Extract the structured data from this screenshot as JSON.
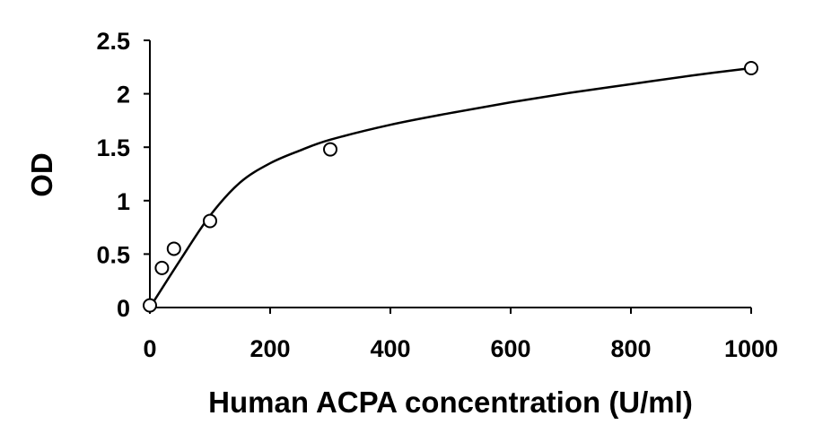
{
  "chart_data": {
    "type": "scatter",
    "title": "",
    "xlabel": "Human ACPA concentration (U/ml)",
    "ylabel": "OD",
    "xlim": [
      0,
      1000
    ],
    "ylim": [
      0,
      2.5
    ],
    "x_ticks": [
      0,
      200,
      400,
      600,
      800,
      1000
    ],
    "y_ticks": [
      0,
      0.5,
      1,
      1.5,
      2,
      2.5
    ],
    "x_tick_labels": [
      "0",
      "200",
      "400",
      "600",
      "800",
      "1000"
    ],
    "y_tick_labels": [
      "0",
      "0.5",
      "1",
      "1.5",
      "2",
      "2.5"
    ],
    "grid": false,
    "legend": "none",
    "series": [
      {
        "marker": "open-circle",
        "x": [
          0,
          20,
          40,
          100,
          300,
          1000
        ],
        "y": [
          0.02,
          0.37,
          0.55,
          0.81,
          1.48,
          2.24
        ]
      }
    ],
    "trendline": {
      "style": "smooth-curve",
      "x": [
        0,
        50,
        100,
        150,
        200,
        250,
        300,
        400,
        500,
        600,
        700,
        800,
        900,
        1000
      ],
      "y": [
        0.0,
        0.44,
        0.86,
        1.17,
        1.35,
        1.47,
        1.57,
        1.71,
        1.82,
        1.92,
        2.01,
        2.09,
        2.17,
        2.24
      ]
    },
    "colors": {
      "axis": "#000000",
      "marker": "#000000",
      "line": "#000000"
    }
  }
}
